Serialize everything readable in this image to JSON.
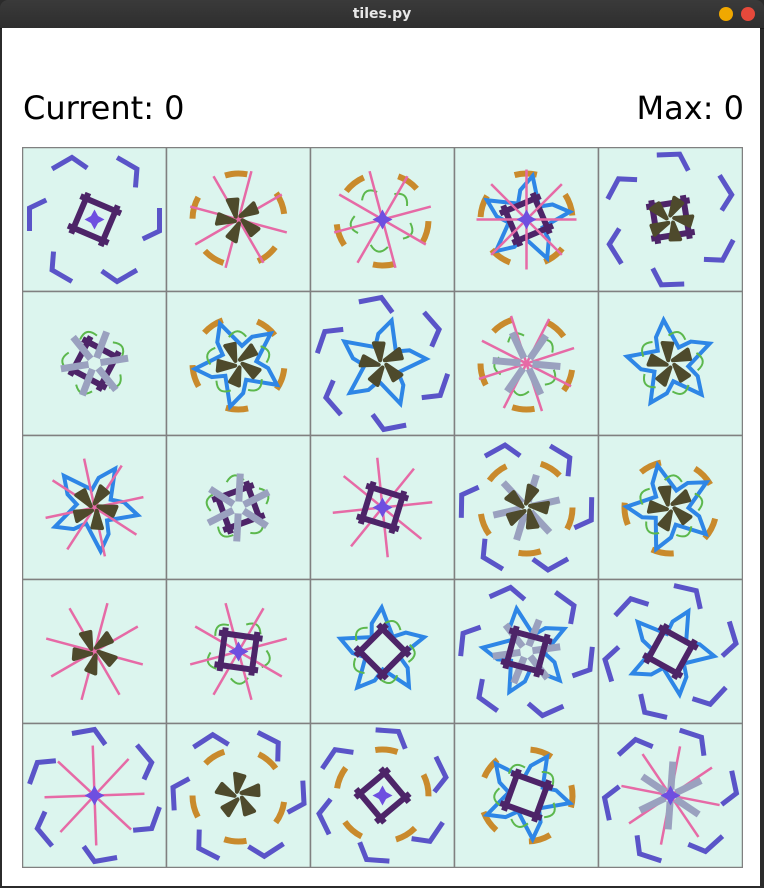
{
  "window": {
    "title": "tiles.py",
    "controls": [
      "minimize-icon",
      "close-icon"
    ],
    "colors": {
      "minimize": "#f0a800",
      "close": "#e6493b"
    }
  },
  "score": {
    "current_label": "Current: 0",
    "max_label": "Max: 0"
  },
  "board": {
    "rows": 5,
    "cols": 5,
    "tile_background": "#dcf5ee",
    "grid_color": "#808080",
    "piece_colors": {
      "v": "#5a54c8",
      "b": "#2e86e6",
      "p": "#4d2468",
      "g": "#9aa1bf",
      "k": "#e66aa6",
      "o": "#c98a2c",
      "l": "#5cb84d",
      "d": "#4e4a2c",
      "m": "#6e4fe0"
    },
    "tiles": [
      {
        "layers": [
          "v",
          "p",
          "m"
        ]
      },
      {
        "layers": [
          "o",
          "k",
          "d"
        ]
      },
      {
        "layers": [
          "o",
          "l",
          "k",
          "m"
        ]
      },
      {
        "layers": [
          "o",
          "b",
          "p",
          "k",
          "m"
        ]
      },
      {
        "layers": [
          "v",
          "p",
          "d"
        ]
      },
      {
        "layers": [
          "l",
          "p",
          "g"
        ]
      },
      {
        "layers": [
          "o",
          "b",
          "l",
          "d"
        ]
      },
      {
        "layers": [
          "v",
          "b",
          "d"
        ]
      },
      {
        "layers": [
          "o",
          "l",
          "k",
          "g"
        ]
      },
      {
        "layers": [
          "b",
          "l",
          "d"
        ]
      },
      {
        "layers": [
          "b",
          "k",
          "d"
        ]
      },
      {
        "layers": [
          "l",
          "p",
          "g"
        ]
      },
      {
        "layers": [
          "k",
          "p",
          "m"
        ]
      },
      {
        "layers": [
          "v",
          "o",
          "g",
          "d"
        ]
      },
      {
        "layers": [
          "o",
          "b",
          "l",
          "d"
        ]
      },
      {
        "layers": [
          "k",
          "d"
        ]
      },
      {
        "layers": [
          "l",
          "k",
          "p",
          "m"
        ]
      },
      {
        "layers": [
          "b",
          "l",
          "p"
        ]
      },
      {
        "layers": [
          "v",
          "b",
          "g",
          "p"
        ]
      },
      {
        "layers": [
          "v",
          "b",
          "p"
        ]
      },
      {
        "layers": [
          "v",
          "k",
          "m"
        ]
      },
      {
        "layers": [
          "v",
          "o",
          "d"
        ]
      },
      {
        "layers": [
          "v",
          "o",
          "p",
          "m"
        ]
      },
      {
        "layers": [
          "o",
          "b",
          "l",
          "p"
        ]
      },
      {
        "layers": [
          "v",
          "k",
          "g",
          "m"
        ]
      }
    ]
  }
}
